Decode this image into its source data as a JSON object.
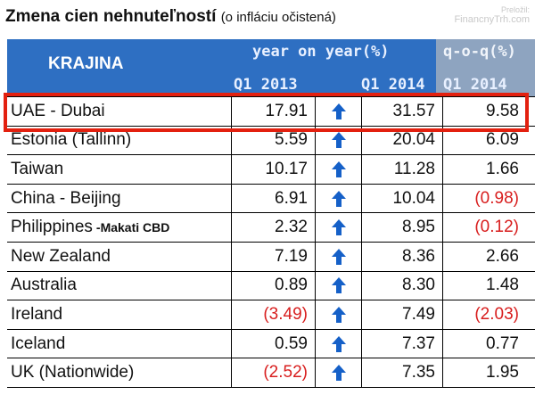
{
  "header": {
    "title": "Zmena cien nehnuteľností",
    "subtitle": "(o infláciu očistená)",
    "credit_line1": "Preložil:",
    "credit_line2": "FinancnyTrh.com"
  },
  "table": {
    "country_header": "KRAJINA",
    "yoy_header": "year on year(%)",
    "qoq_header": "q-o-q(%)",
    "col_q1_2013": "Q1 2013",
    "col_q1_2014": "Q1 2014",
    "col_qoq_2014": "Q1 2014",
    "rows": [
      {
        "country": "UAE - Dubai",
        "extra": "",
        "q1_2013": "17.91",
        "q1_2013_neg": false,
        "q1_2014": "31.57",
        "qoq": "9.58",
        "qoq_neg": false
      },
      {
        "country": "Estonia (Tallinn)",
        "extra": "",
        "q1_2013": "5.59",
        "q1_2013_neg": false,
        "q1_2014": "20.04",
        "qoq": "6.09",
        "qoq_neg": false
      },
      {
        "country": "Taiwan",
        "extra": "",
        "q1_2013": "10.17",
        "q1_2013_neg": false,
        "q1_2014": "11.28",
        "qoq": "1.66",
        "qoq_neg": false
      },
      {
        "country": "China - Beijing",
        "extra": "",
        "q1_2013": "6.91",
        "q1_2013_neg": false,
        "q1_2014": "10.04",
        "qoq": "(0.98)",
        "qoq_neg": true
      },
      {
        "country": "Philippines",
        "extra": "-Makati CBD",
        "q1_2013": "2.32",
        "q1_2013_neg": false,
        "q1_2014": "8.95",
        "qoq": "(0.12)",
        "qoq_neg": true
      },
      {
        "country": "New Zealand",
        "extra": "",
        "q1_2013": "7.19",
        "q1_2013_neg": false,
        "q1_2014": "8.36",
        "qoq": "2.66",
        "qoq_neg": false
      },
      {
        "country": "Australia",
        "extra": "",
        "q1_2013": "0.89",
        "q1_2013_neg": false,
        "q1_2014": "8.30",
        "qoq": "1.48",
        "qoq_neg": false
      },
      {
        "country": "Ireland",
        "extra": "",
        "q1_2013": "(3.49)",
        "q1_2013_neg": true,
        "q1_2014": "7.49",
        "qoq": "(2.03)",
        "qoq_neg": true
      },
      {
        "country": "Iceland",
        "extra": "",
        "q1_2013": "0.59",
        "q1_2013_neg": false,
        "q1_2014": "7.37",
        "qoq": "0.77",
        "qoq_neg": false
      },
      {
        "country": "UK (Nationwide)",
        "extra": "",
        "q1_2013": "(2.52)",
        "q1_2013_neg": true,
        "q1_2014": "7.35",
        "qoq": "1.95",
        "qoq_neg": false
      }
    ],
    "arrow_icon": "arrow-up-icon",
    "arrow_color": "#1560c8",
    "negative_color": "#d81e1e",
    "highlight_color": "#e3200f"
  }
}
